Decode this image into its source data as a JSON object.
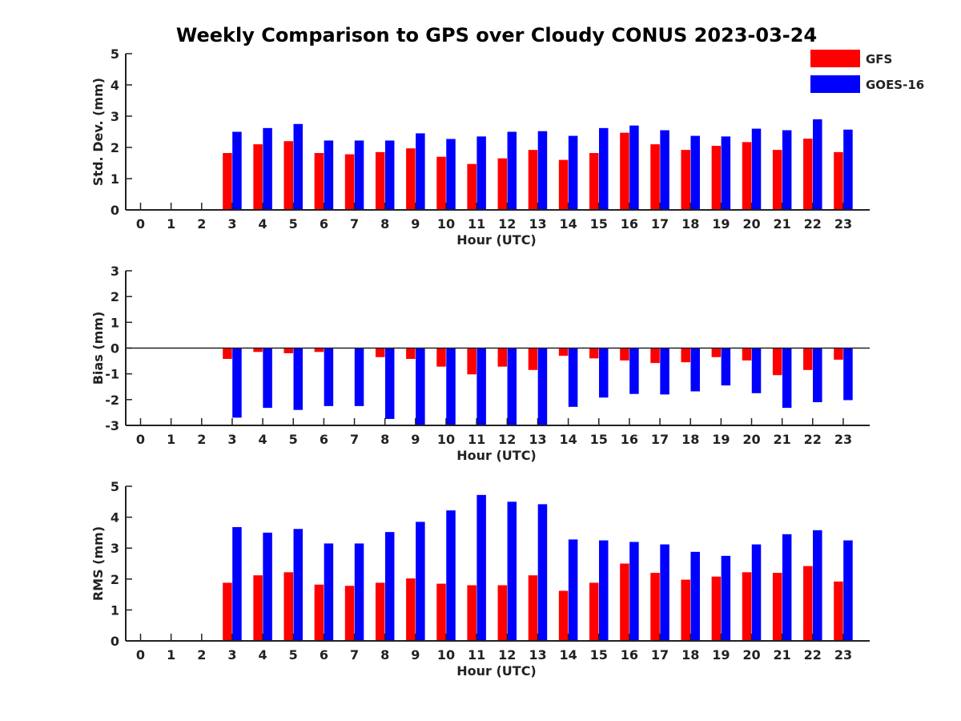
{
  "title": "Weekly Comparison to GPS over Cloudy CONUS 2023-03-24",
  "legend": {
    "position": "top-right",
    "items": [
      {
        "label": "GFS",
        "color": "#ff0000"
      },
      {
        "label": "GOES-16",
        "color": "#0000ff"
      }
    ]
  },
  "chart_data": [
    {
      "type": "bar",
      "ylabel": "Std. Dev. (mm)",
      "xlabel": "Hour (UTC)",
      "categories": [
        "0",
        "1",
        "2",
        "3",
        "4",
        "5",
        "6",
        "7",
        "8",
        "9",
        "10",
        "11",
        "12",
        "13",
        "14",
        "15",
        "16",
        "17",
        "18",
        "19",
        "20",
        "21",
        "22",
        "23"
      ],
      "ylim": [
        0,
        5
      ],
      "yticks": [
        0,
        1,
        2,
        3,
        4,
        5
      ],
      "zero_line": false,
      "series": [
        {
          "name": "GFS",
          "color": "#ff0000",
          "values": [
            null,
            null,
            null,
            1.82,
            2.1,
            2.2,
            1.82,
            1.78,
            1.85,
            1.97,
            1.7,
            1.47,
            1.65,
            1.92,
            1.6,
            1.82,
            2.47,
            2.1,
            1.92,
            2.05,
            2.17,
            1.92,
            2.28,
            1.85
          ]
        },
        {
          "name": "GOES-16",
          "color": "#0000ff",
          "values": [
            null,
            null,
            null,
            2.5,
            2.62,
            2.75,
            2.22,
            2.22,
            2.22,
            2.45,
            2.27,
            2.35,
            2.5,
            2.52,
            2.37,
            2.62,
            2.7,
            2.55,
            2.37,
            2.35,
            2.6,
            2.55,
            2.9,
            2.57
          ]
        }
      ]
    },
    {
      "type": "bar",
      "ylabel": "Bias (mm)",
      "xlabel": "Hour (UTC)",
      "categories": [
        "0",
        "1",
        "2",
        "3",
        "4",
        "5",
        "6",
        "7",
        "8",
        "9",
        "10",
        "11",
        "12",
        "13",
        "14",
        "15",
        "16",
        "17",
        "18",
        "19",
        "20",
        "21",
        "22",
        "23"
      ],
      "ylim": [
        -3,
        3
      ],
      "yticks": [
        -3,
        -2,
        -1,
        0,
        1,
        2,
        3
      ],
      "zero_line": true,
      "series": [
        {
          "name": "GFS",
          "color": "#ff0000",
          "values": [
            null,
            null,
            null,
            -0.42,
            -0.15,
            -0.2,
            -0.15,
            0.0,
            -0.35,
            -0.42,
            -0.72,
            -1.02,
            -0.72,
            -0.85,
            -0.3,
            -0.4,
            -0.48,
            -0.58,
            -0.55,
            -0.35,
            -0.48,
            -1.05,
            -0.85,
            -0.45
          ]
        },
        {
          "name": "GOES-16",
          "color": "#0000ff",
          "values": [
            null,
            null,
            null,
            -2.7,
            -2.32,
            -2.4,
            -2.25,
            -2.25,
            -2.75,
            -3.0,
            -3.0,
            -3.0,
            -3.0,
            -3.0,
            -2.28,
            -1.92,
            -1.78,
            -1.8,
            -1.68,
            -1.45,
            -1.75,
            -2.32,
            -2.1,
            -2.02
          ]
        }
      ]
    },
    {
      "type": "bar",
      "ylabel": "RMS (mm)",
      "xlabel": "Hour (UTC)",
      "categories": [
        "0",
        "1",
        "2",
        "3",
        "4",
        "5",
        "6",
        "7",
        "8",
        "9",
        "10",
        "11",
        "12",
        "13",
        "14",
        "15",
        "16",
        "17",
        "18",
        "19",
        "20",
        "21",
        "22",
        "23"
      ],
      "ylim": [
        0,
        5
      ],
      "yticks": [
        0,
        1,
        2,
        3,
        4,
        5
      ],
      "zero_line": false,
      "series": [
        {
          "name": "GFS",
          "color": "#ff0000",
          "values": [
            null,
            null,
            null,
            1.88,
            2.12,
            2.22,
            1.82,
            1.78,
            1.88,
            2.02,
            1.85,
            1.8,
            1.8,
            2.12,
            1.62,
            1.88,
            2.5,
            2.2,
            1.98,
            2.08,
            2.22,
            2.2,
            2.42,
            1.92
          ]
        },
        {
          "name": "GOES-16",
          "color": "#0000ff",
          "values": [
            null,
            null,
            null,
            3.68,
            3.5,
            3.62,
            3.15,
            3.15,
            3.52,
            3.85,
            4.22,
            4.72,
            4.5,
            4.42,
            3.28,
            3.25,
            3.2,
            3.12,
            2.88,
            2.75,
            3.12,
            3.45,
            3.58,
            3.25
          ]
        }
      ]
    }
  ]
}
